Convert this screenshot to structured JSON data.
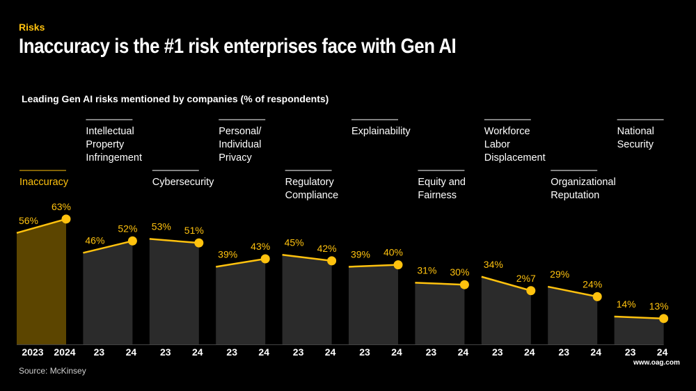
{
  "header": {
    "eyebrow": "Risks",
    "title": "Inaccuracy is the #1 risk enterprises face with Gen AI"
  },
  "footer": {
    "source": "Source: McKinsey",
    "site": "www.oag.com"
  },
  "colors": {
    "accent": "#FFC20E",
    "highlight_fill": "#5C4500",
    "bar_fill": "#2B2B2B",
    "text": "#FFFFFF"
  },
  "chart_data": {
    "type": "area",
    "title": "Leading Gen AI risks mentioned by companies (% of respondents)",
    "unit": "%",
    "years": [
      "2023",
      "2024"
    ],
    "categories": [
      {
        "name": "Inaccuracy",
        "lines": [
          "Inaccuracy"
        ],
        "v2023": 56,
        "v2024": 63,
        "label2023": "56%",
        "label2024": "63%",
        "xlabels": [
          "2023",
          "2024"
        ],
        "highlight": true,
        "tier": 0
      },
      {
        "name": "Intellectual Property Infringement",
        "lines": [
          "Intellectual",
          "Property",
          "Infringement"
        ],
        "v2023": 46,
        "v2024": 52,
        "label2023": "46%",
        "label2024": "52%",
        "xlabels": [
          "23",
          "24"
        ],
        "highlight": false,
        "tier": 1
      },
      {
        "name": "Cybersecurity",
        "lines": [
          "Cybersecurity"
        ],
        "v2023": 53,
        "v2024": 51,
        "label2023": "53%",
        "label2024": "51%",
        "xlabels": [
          "23",
          "24"
        ],
        "highlight": false,
        "tier": 0
      },
      {
        "name": "Personal/ Individual Privacy",
        "lines": [
          "Personal/",
          "Individual",
          "Privacy"
        ],
        "v2023": 39,
        "v2024": 43,
        "label2023": "39%",
        "label2024": "43%",
        "xlabels": [
          "23",
          "24"
        ],
        "highlight": false,
        "tier": 1
      },
      {
        "name": "Regulatory Compliance",
        "lines": [
          "Regulatory",
          "Compliance"
        ],
        "v2023": 45,
        "v2024": 42,
        "label2023": "45%",
        "label2024": "42%",
        "xlabels": [
          "23",
          "24"
        ],
        "highlight": false,
        "tier": 0
      },
      {
        "name": "Explainability",
        "lines": [
          "Explainability"
        ],
        "v2023": 39,
        "v2024": 40,
        "label2023": "39%",
        "label2024": "40%",
        "xlabels": [
          "23",
          "24"
        ],
        "highlight": false,
        "tier": 1
      },
      {
        "name": "Equity and Fairness",
        "lines": [
          "Equity and",
          "Fairness"
        ],
        "v2023": 31,
        "v2024": 30,
        "label2023": "31%",
        "label2024": "30%",
        "xlabels": [
          "23",
          "24"
        ],
        "highlight": false,
        "tier": 0
      },
      {
        "name": "Workforce Labor Displacement",
        "lines": [
          "Workforce",
          "Labor",
          "Displacement"
        ],
        "v2023": 34,
        "v2024": 27,
        "label2023": "34%",
        "label2024": "2%7",
        "xlabels": [
          "23",
          "24"
        ],
        "highlight": false,
        "tier": 1
      },
      {
        "name": "Organizational Reputation",
        "lines": [
          "Organizational",
          "Reputation"
        ],
        "v2023": 29,
        "v2024": 24,
        "label2023": "29%",
        "label2024": "24%",
        "xlabels": [
          "23",
          "24"
        ],
        "highlight": false,
        "tier": 0
      },
      {
        "name": "National Security",
        "lines": [
          "National",
          "Security"
        ],
        "v2023": 14,
        "v2024": 13,
        "label2023": "14%",
        "label2024": "13%",
        "xlabels": [
          "23",
          "24"
        ],
        "highlight": false,
        "tier": 1
      }
    ],
    "ylim": [
      0,
      70
    ],
    "grid": false,
    "legend": "none"
  }
}
